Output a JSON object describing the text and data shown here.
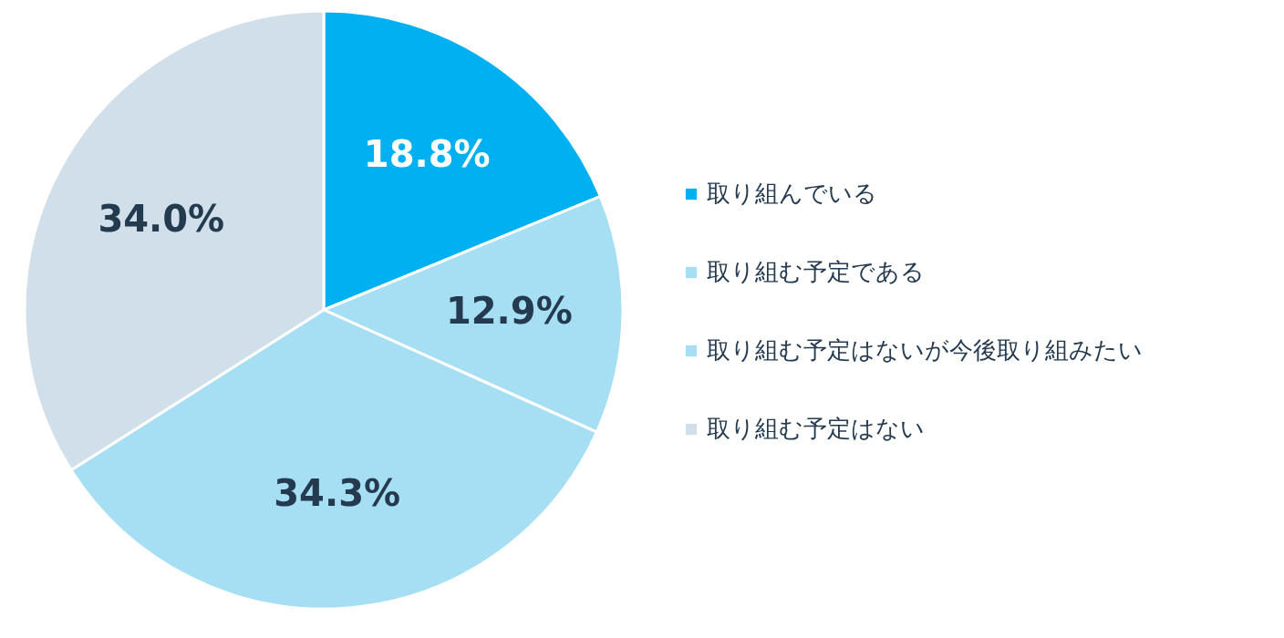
{
  "chart_data": {
    "type": "pie",
    "categories": [
      "取り組んでいる",
      "取り組む予定である",
      "取り組む予定はないが今後取り組みたい",
      "取り組む予定はない"
    ],
    "values": [
      18.8,
      12.9,
      34.3,
      34.0
    ],
    "colors": [
      "#00b0f0",
      "#a6dff3",
      "#a6dff3",
      "#d0dfea"
    ],
    "value_labels": [
      "18.8%",
      "12.9%",
      "34.3%",
      "34.0%"
    ],
    "legend": "right"
  }
}
